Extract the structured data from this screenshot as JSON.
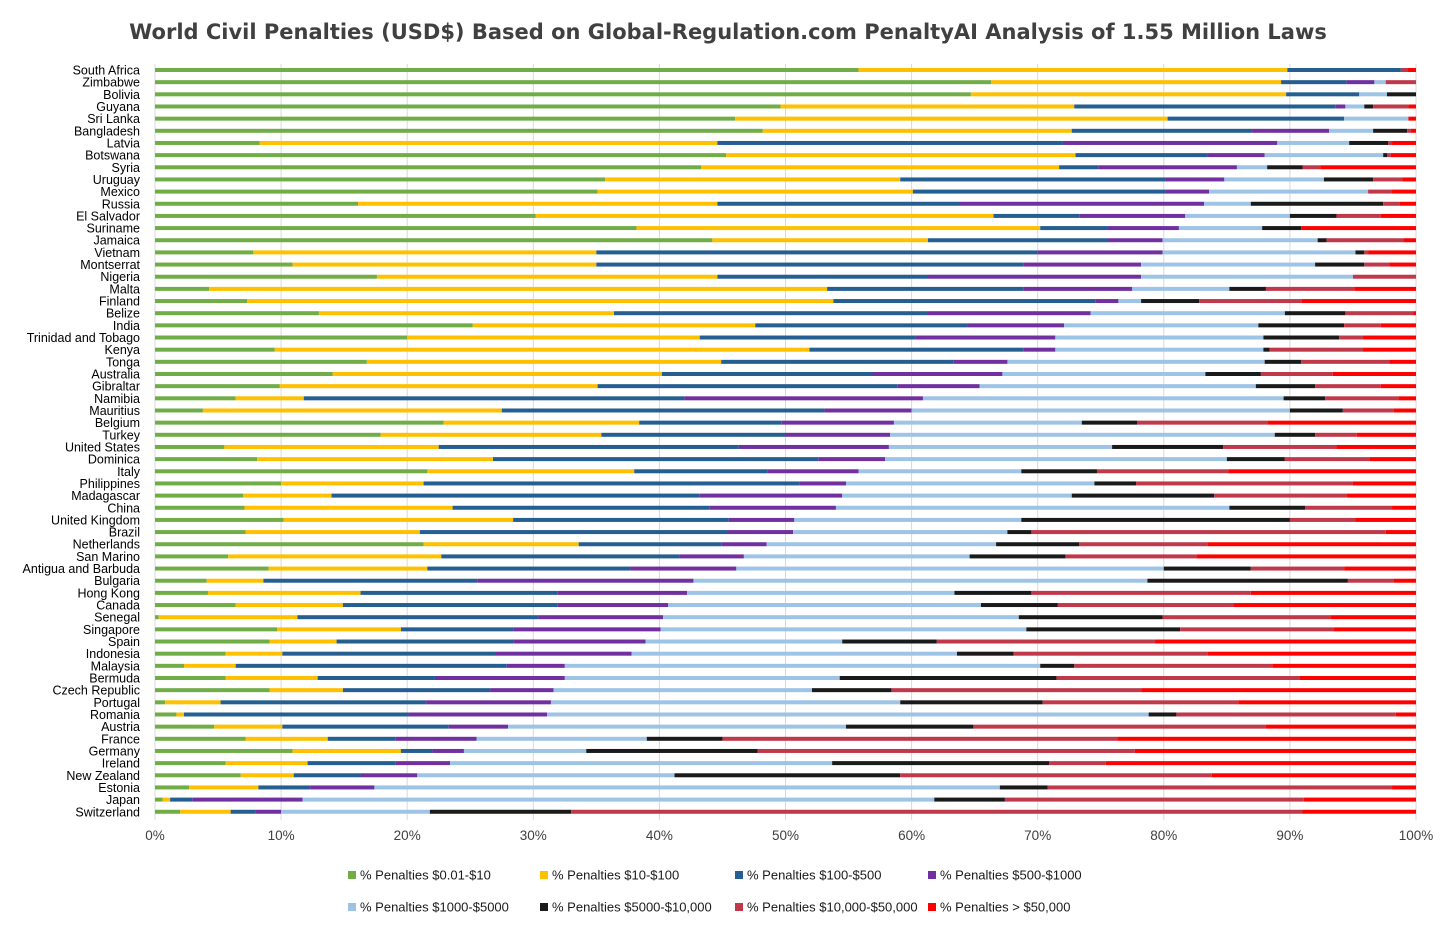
{
  "chart_data": {
    "type": "bar",
    "orientation": "horizontal",
    "stacked": "percent",
    "title": "World Civil Penalties (USD$) Based on Global-Regulation.com PenaltyAI Analysis of 1.55 Million Laws",
    "x_tick_labels": [
      "0%",
      "10%",
      "20%",
      "30%",
      "40%",
      "50%",
      "60%",
      "70%",
      "80%",
      "90%",
      "100%"
    ],
    "xlim": [
      0,
      100
    ],
    "grid": "vertical",
    "legend_position": "bottom",
    "series": [
      {
        "name": "% Penalties $0.01-$10",
        "color": "#70AD47"
      },
      {
        "name": "% Penalties $10-$100",
        "color": "#FFC000"
      },
      {
        "name": "% Penalties $100-$500",
        "color": "#255E91"
      },
      {
        "name": "% Penalties $500-$1000",
        "color": "#7030A0"
      },
      {
        "name": "% Penalties $1000-$5000",
        "color": "#9DC3E6"
      },
      {
        "name": "% Penalties $5000-$10,000",
        "color": "#1A1A1A"
      },
      {
        "name": "% Penalties $10,000-$50,000",
        "color": "#C0394B"
      },
      {
        "name": "% Penalties > $50,000",
        "color": "#FF0000"
      }
    ],
    "categories": [
      "South Africa",
      "Zimbabwe",
      "Bolivia",
      "Guyana",
      "Sri Lanka",
      "Bangladesh",
      "Latvia",
      "Botswana",
      "Syria",
      "Uruguay",
      "Mexico",
      "Russia",
      "El Salvador",
      "Suriname",
      "Jamaica",
      "Vietnam",
      "Montserrat",
      "Nigeria",
      "Malta",
      "Finland",
      "Belize",
      "India",
      "Trinidad and Tobago",
      "Kenya",
      "Tonga",
      "Australia",
      "Gibraltar",
      "Namibia",
      "Mauritius",
      "Belgium",
      "Turkey",
      "United States",
      "Dominica",
      "Italy",
      "Philippines",
      "Madagascar",
      "China",
      "United Kingdom",
      "Brazil",
      "Netherlands",
      "San Marino",
      "Antigua and Barbuda",
      "Bulgaria",
      "Hong Kong",
      "Canada",
      "Senegal",
      "Singapore",
      "Spain",
      "Indonesia",
      "Malaysia",
      "Bermuda",
      "Czech Republic",
      "Portugal",
      "Romania",
      "Austria",
      "France",
      "Germany",
      "Ireland",
      "New Zealand",
      "Estonia",
      "Japan",
      "Switzerland"
    ],
    "cumulative_percent": [
      [
        55.8,
        89.8,
        98.8,
        98.8,
        98.8,
        98.8,
        99.3,
        100
      ],
      [
        66.3,
        89.3,
        94.5,
        96.7,
        97.6,
        97.6,
        100,
        100
      ],
      [
        64.7,
        89.7,
        95.5,
        95.5,
        97.7,
        100,
        100,
        100
      ],
      [
        49.6,
        72.9,
        93.6,
        94.4,
        95.9,
        96.6,
        99.4,
        100
      ],
      [
        46.0,
        80.3,
        94.3,
        94.3,
        99.4,
        99.4,
        99.4,
        100
      ],
      [
        48.2,
        72.7,
        87.0,
        93.1,
        96.6,
        99.3,
        99.6,
        100
      ],
      [
        8.3,
        44.6,
        72.0,
        89.0,
        94.7,
        97.8,
        98.1,
        100
      ],
      [
        45.3,
        73.0,
        83.5,
        88.0,
        97.4,
        97.7,
        98.0,
        100
      ],
      [
        43.3,
        71.7,
        74.8,
        85.8,
        88.2,
        91.0,
        92.4,
        100
      ],
      [
        35.7,
        59.1,
        80.1,
        84.8,
        92.7,
        96.6,
        98.9,
        100
      ],
      [
        35.1,
        60.1,
        80.1,
        83.6,
        96.2,
        96.2,
        98.1,
        100
      ],
      [
        16.1,
        44.6,
        63.8,
        83.2,
        86.9,
        97.4,
        98.7,
        100
      ],
      [
        30.2,
        66.5,
        73.3,
        81.7,
        90.0,
        93.7,
        97.2,
        100
      ],
      [
        38.2,
        70.2,
        75.5,
        81.2,
        87.8,
        90.9,
        90.9,
        100
      ],
      [
        44.2,
        61.3,
        75.5,
        79.9,
        92.2,
        92.9,
        99.0,
        100
      ],
      [
        7.8,
        35.0,
        70.0,
        79.9,
        95.2,
        95.9,
        96.2,
        100
      ],
      [
        10.9,
        35.0,
        68.9,
        78.2,
        92.0,
        95.9,
        97.9,
        100
      ],
      [
        17.6,
        44.6,
        61.3,
        78.2,
        95.0,
        95.0,
        100,
        100
      ],
      [
        4.3,
        53.3,
        68.9,
        77.5,
        85.2,
        88.1,
        95.1,
        100
      ],
      [
        7.3,
        53.8,
        74.6,
        76.4,
        78.2,
        82.8,
        90.9,
        100
      ],
      [
        13.0,
        36.4,
        61.3,
        74.2,
        89.6,
        94.4,
        99.8,
        100
      ],
      [
        25.2,
        47.6,
        64.4,
        72.1,
        87.5,
        94.3,
        97.2,
        100
      ],
      [
        20.0,
        43.2,
        60.3,
        71.4,
        87.9,
        93.9,
        95.8,
        100
      ],
      [
        9.5,
        51.9,
        68.9,
        71.4,
        87.9,
        88.4,
        95.8,
        100
      ],
      [
        16.8,
        44.9,
        63.3,
        67.6,
        88.0,
        90.9,
        97.9,
        100
      ],
      [
        14.1,
        40.2,
        56.9,
        67.2,
        83.3,
        87.7,
        93.4,
        100
      ],
      [
        9.9,
        35.1,
        58.9,
        65.4,
        87.3,
        92.0,
        97.2,
        100
      ],
      [
        6.4,
        11.8,
        42.0,
        60.9,
        89.5,
        92.8,
        98.6,
        100
      ],
      [
        3.8,
        27.5,
        53.1,
        60.0,
        90.0,
        94.2,
        98.2,
        100
      ],
      [
        22.9,
        38.4,
        49.7,
        58.6,
        73.5,
        77.9,
        88.2,
        100
      ],
      [
        17.9,
        35.4,
        50.0,
        58.3,
        88.8,
        92.0,
        95.3,
        100
      ],
      [
        5.5,
        22.5,
        46.3,
        58.2,
        75.9,
        84.7,
        93.7,
        100
      ],
      [
        8.1,
        26.8,
        52.6,
        57.9,
        85.0,
        89.6,
        96.3,
        100
      ],
      [
        21.6,
        38.0,
        48.6,
        55.8,
        68.7,
        74.7,
        85.1,
        100
      ],
      [
        10.0,
        21.3,
        51.1,
        54.8,
        74.5,
        77.8,
        95.0,
        100
      ],
      [
        7.0,
        14.0,
        43.2,
        54.5,
        72.7,
        84.0,
        94.5,
        100
      ],
      [
        7.1,
        23.6,
        44.0,
        54.0,
        85.2,
        91.2,
        98.1,
        100
      ],
      [
        10.2,
        28.4,
        45.5,
        50.7,
        68.7,
        90.0,
        95.2,
        100
      ],
      [
        7.2,
        21.0,
        45.4,
        50.6,
        67.6,
        69.5,
        97.6,
        100
      ],
      [
        21.3,
        33.6,
        44.9,
        48.5,
        66.7,
        73.3,
        83.5,
        100
      ],
      [
        5.8,
        22.7,
        41.6,
        46.7,
        64.6,
        72.2,
        82.6,
        100
      ],
      [
        9.0,
        21.6,
        37.7,
        46.1,
        80.0,
        86.9,
        94.3,
        100
      ],
      [
        4.1,
        8.6,
        25.6,
        42.7,
        78.7,
        94.6,
        98.2,
        100
      ],
      [
        4.2,
        16.3,
        31.9,
        42.2,
        63.4,
        69.5,
        86.9,
        100
      ],
      [
        6.4,
        14.9,
        31.9,
        40.7,
        65.5,
        71.6,
        85.5,
        100
      ],
      [
        0.3,
        11.3,
        30.4,
        40.3,
        68.5,
        79.9,
        93.2,
        100
      ],
      [
        9.7,
        19.5,
        28.4,
        40.1,
        69.1,
        81.3,
        93.5,
        100
      ],
      [
        9.1,
        14.4,
        28.4,
        38.9,
        54.5,
        62.0,
        79.3,
        100
      ],
      [
        5.6,
        10.1,
        27.0,
        37.8,
        63.6,
        68.1,
        83.5,
        100
      ],
      [
        2.3,
        6.4,
        27.9,
        32.5,
        70.2,
        72.9,
        88.6,
        100
      ],
      [
        5.6,
        12.9,
        22.2,
        32.5,
        54.3,
        71.5,
        90.8,
        100
      ],
      [
        9.1,
        14.9,
        26.6,
        31.6,
        52.1,
        58.4,
        78.2,
        100
      ],
      [
        0.8,
        5.2,
        21.5,
        31.4,
        59.1,
        70.4,
        85.9,
        100
      ],
      [
        1.7,
        2.3,
        20.1,
        31.1,
        78.8,
        81.0,
        98.4,
        100
      ],
      [
        4.7,
        10.1,
        23.3,
        28.0,
        54.8,
        64.9,
        88.1,
        100
      ],
      [
        7.2,
        13.7,
        19.1,
        25.5,
        39.0,
        45.0,
        76.3,
        100
      ],
      [
        10.9,
        19.5,
        22.0,
        24.5,
        34.2,
        47.8,
        77.7,
        100
      ],
      [
        5.6,
        12.1,
        19.1,
        23.4,
        53.7,
        70.9,
        75.4,
        100
      ],
      [
        6.8,
        11.0,
        16.3,
        20.8,
        41.2,
        59.1,
        83.8,
        100
      ],
      [
        2.7,
        8.2,
        12.3,
        17.4,
        67.0,
        70.8,
        98.1,
        100
      ],
      [
        0.6,
        1.2,
        3.0,
        11.7,
        61.8,
        67.4,
        91.1,
        100
      ],
      [
        2.0,
        6.0,
        8.0,
        10.0,
        21.8,
        33.0,
        91.0,
        100
      ]
    ]
  }
}
